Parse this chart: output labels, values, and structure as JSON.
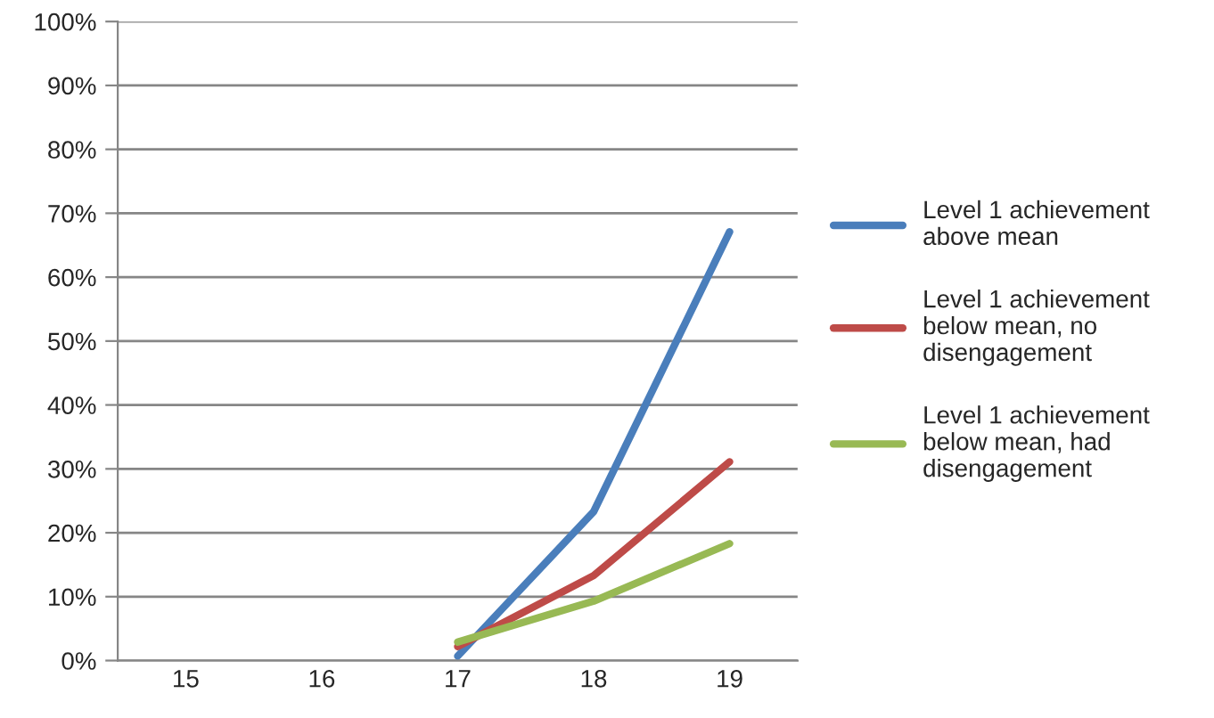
{
  "chart_data": {
    "type": "line",
    "categories": [
      "15",
      "16",
      "17",
      "18",
      "19"
    ],
    "series": [
      {
        "name": "Level 1 achievement above mean",
        "color": "#4a7ebb",
        "values": [
          null,
          null,
          0.7,
          23.3,
          67.1
        ]
      },
      {
        "name": "Level 1 achievement below mean, no disengagement",
        "color": "#be4b48",
        "values": [
          null,
          null,
          2.2,
          13.3,
          31.1
        ]
      },
      {
        "name": "Level 1 achievement below mean, had disengagement",
        "color": "#98b954",
        "values": [
          null,
          null,
          2.9,
          9.3,
          18.3
        ]
      }
    ],
    "ylim": [
      0,
      100
    ],
    "yticks": [
      {
        "value": 0,
        "label": "0%"
      },
      {
        "value": 10,
        "label": "10%"
      },
      {
        "value": 20,
        "label": "20%"
      },
      {
        "value": 30,
        "label": "30%"
      },
      {
        "value": 40,
        "label": "40%"
      },
      {
        "value": 50,
        "label": "50%"
      },
      {
        "value": 60,
        "label": "60%"
      },
      {
        "value": 70,
        "label": "70%"
      },
      {
        "value": 80,
        "label": "80%"
      },
      {
        "value": 90,
        "label": "90%"
      },
      {
        "value": 100,
        "label": "100%"
      }
    ],
    "grid": "y",
    "legend": "right",
    "marker": "none",
    "line_style": "solid"
  }
}
